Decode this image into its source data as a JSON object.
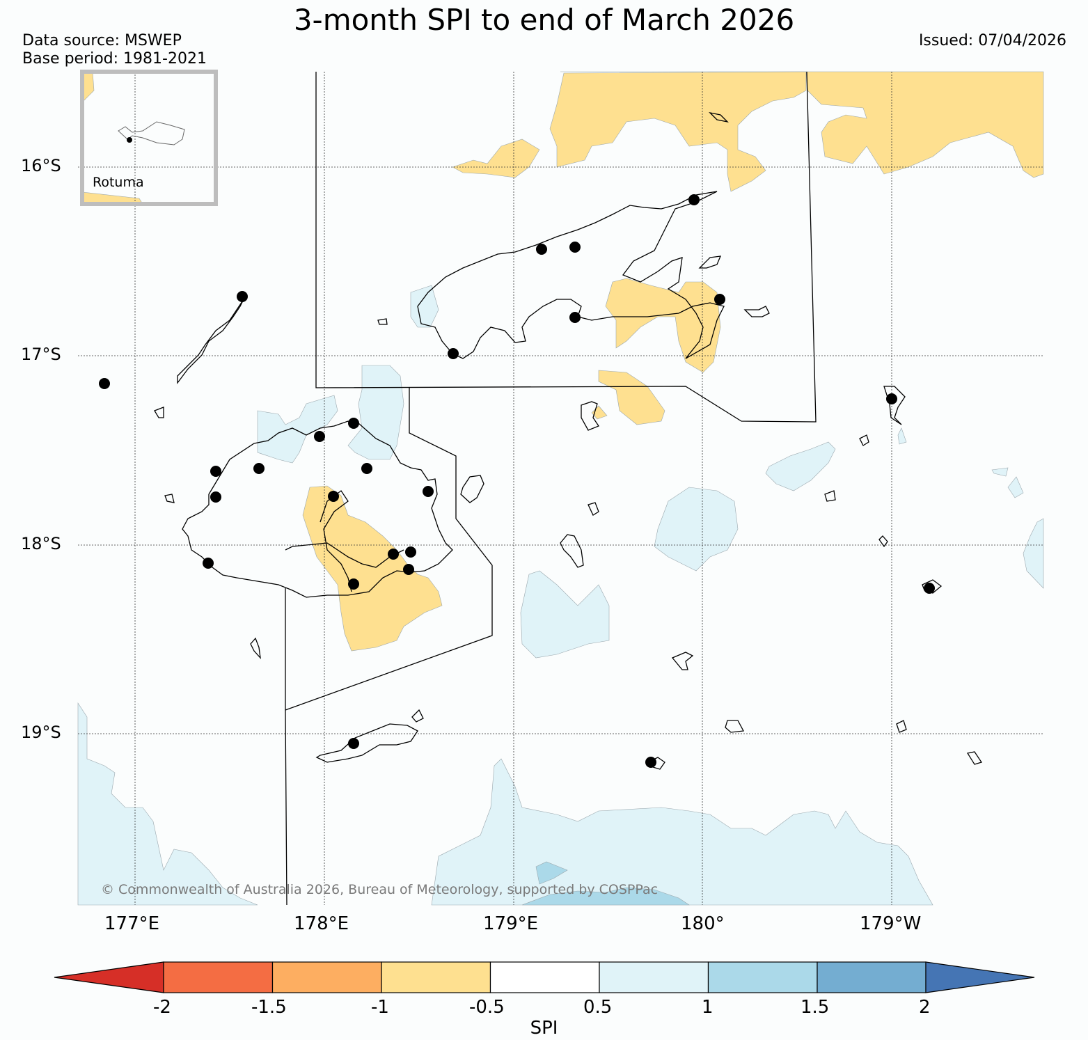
{
  "title": "3-month SPI to end of March 2026",
  "data_source": "Data source: MSWEP",
  "base_period": "Base period: 1981-2021",
  "issued": "Issued: 07/04/2026",
  "inset_label": "Rotuma",
  "copyright": "© Commonwealth of Australia 2026, Bureau of Meteorology, supported by COSPPac",
  "lat_labels": [
    "16°S",
    "17°S",
    "18°S",
    "19°S"
  ],
  "lon_labels": [
    "177°E",
    "178°E",
    "179°E",
    "180°",
    "179°W"
  ],
  "colorbar": {
    "title": "SPI",
    "tick_labels": [
      "-2",
      "-1.5",
      "-1",
      "-0.5",
      "0.5",
      "1",
      "1.5",
      "2"
    ],
    "colors": {
      "below_min": "#d62f27",
      "-2_-1.5": "#f46d43",
      "-1.5_-1": "#fdae61",
      "-1_-0.5": "#fee090",
      "-0.5_0.5": "#ffffff",
      "0.5_1": "#e0f3f8",
      "1_1.5": "#abd9e9",
      "1.5_2": "#74add1",
      "above_max": "#4575b4"
    }
  },
  "legend_categories": [
    "below -2",
    "-2 to -1.5",
    "-1.5 to -1",
    "-1 to -0.5",
    "-0.5 to 0.5",
    "0.5 to 1",
    "1 to 1.5",
    "1.5 to 2",
    "above 2"
  ]
}
